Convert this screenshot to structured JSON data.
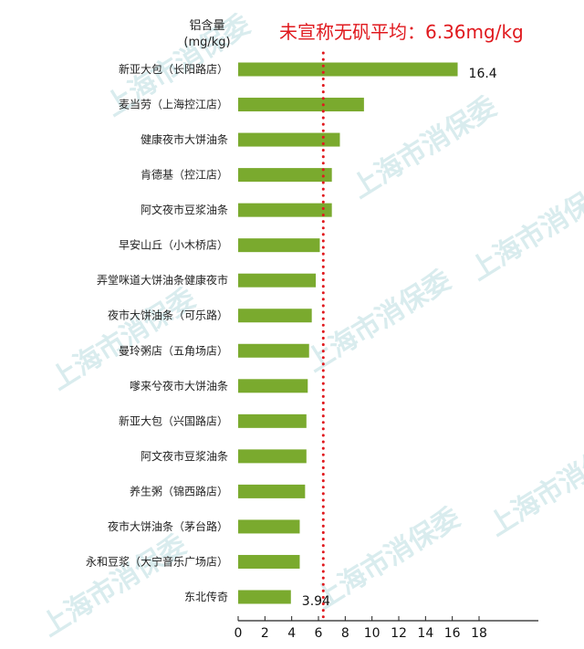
{
  "chart_data": {
    "type": "bar",
    "orientation": "horizontal",
    "ylabel": [
      "铝含量",
      "(mg/kg)"
    ],
    "annotation": "未宣称无矾平均：6.36mg/kg",
    "reference_line": {
      "value": 6.36,
      "style": "dotted",
      "color": "#e0191e"
    },
    "categories": [
      "新亚大包（长阳路店）",
      "麦当劳（上海控江店）",
      "健康夜市大饼油条",
      "肯德基（控江店）",
      "阿文夜市豆浆油条",
      "早安山丘（小木桥店）",
      "弄堂咪道大饼油条健康夜市",
      "夜市大饼油条（可乐路）",
      "曼玲粥店（五角场店）",
      "嗲来兮夜市大饼油条",
      "新亚大包（兴国路店）",
      "阿文夜市豆浆油条",
      "养生粥（锦西路店）",
      "夜市大饼油条（茅台路）",
      "永和豆浆（大宁音乐广场店）",
      "东北传奇"
    ],
    "values": [
      16.4,
      9.4,
      7.6,
      7.0,
      7.0,
      6.1,
      5.8,
      5.5,
      5.3,
      5.2,
      5.1,
      5.1,
      5.0,
      4.6,
      4.6,
      3.94
    ],
    "data_labels": {
      "0": "16.4",
      "15": "3.94"
    },
    "xlim": [
      0,
      18
    ],
    "xticks": [
      "0",
      "2",
      "4",
      "6",
      "8",
      "10",
      "12",
      "14",
      "16",
      "18"
    ],
    "bar_color": "#7aaa2e",
    "grid": false
  },
  "watermark": "上海市消保委"
}
